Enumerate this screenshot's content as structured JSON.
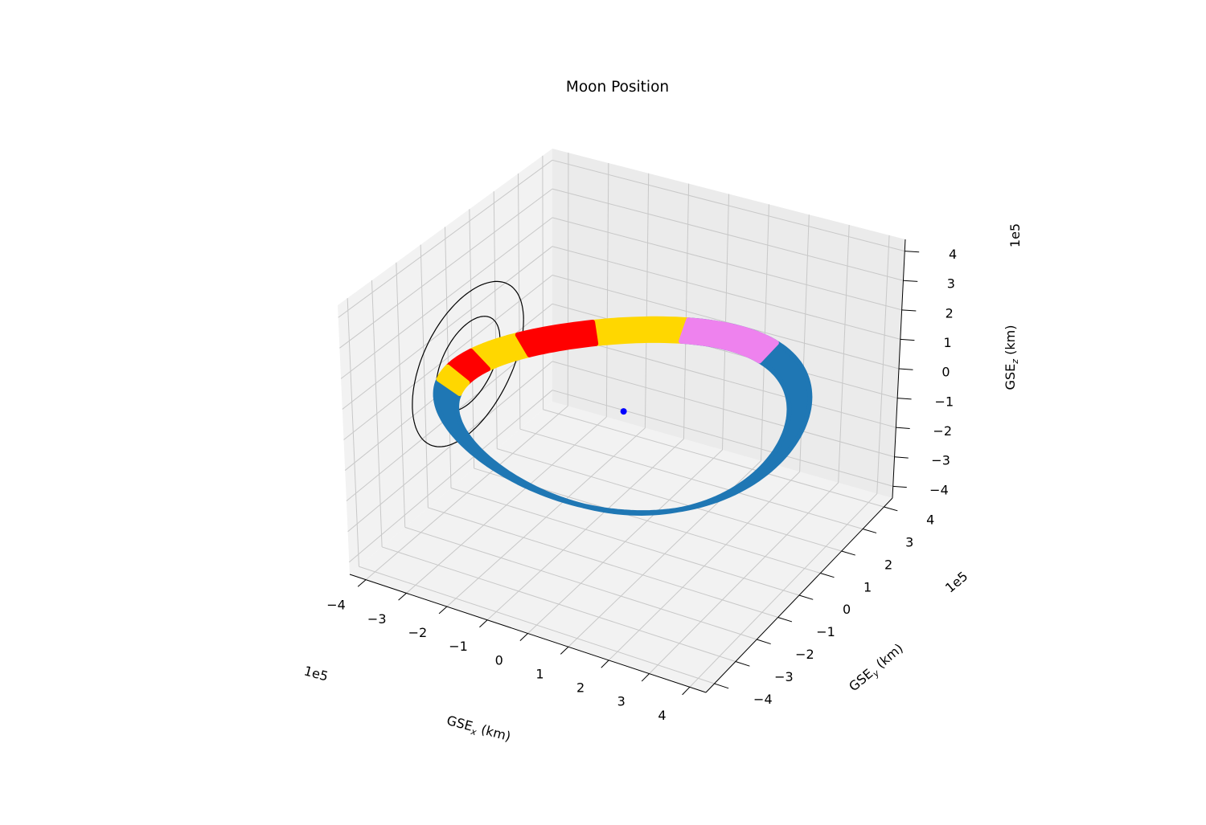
{
  "chart_data": {
    "type": "scatter",
    "projection": "3d",
    "title": "Moon Position",
    "xlabel": "GSE_x (km)",
    "ylabel": "GSE_y (km)",
    "zlabel": "GSE_z (km)",
    "xlabel_main": "GSE",
    "xlabel_sub": "x",
    "xlabel_unit": " (km)",
    "ylabel_main": "GSE",
    "ylabel_sub": "y",
    "ylabel_unit": " (km)",
    "zlabel_main": "GSE",
    "zlabel_sub": "z",
    "zlabel_unit": " (km)",
    "axis_multiplier": "1e5",
    "xlim": [
      -4.4,
      4.4
    ],
    "ylim": [
      -4.4,
      4.4
    ],
    "zlim": [
      -4.4,
      4.4
    ],
    "xticks": [
      -4,
      -3,
      -2,
      -1,
      0,
      1,
      2,
      3,
      4
    ],
    "yticks": [
      -4,
      -3,
      -2,
      -1,
      0,
      1,
      2,
      3,
      4
    ],
    "zticks": [
      -4,
      -3,
      -2,
      -1,
      0,
      1,
      2,
      3,
      4
    ],
    "xtick_labels": [
      "−4",
      "−3",
      "−2",
      "−1",
      "0",
      "1",
      "2",
      "3",
      "4"
    ],
    "ytick_labels": [
      "−4",
      "−3",
      "−2",
      "−1",
      "0",
      "1",
      "2",
      "3",
      "4"
    ],
    "ztick_labels": [
      "−4",
      "−3",
      "−2",
      "−1",
      "0",
      "1",
      "2",
      "3",
      "4"
    ],
    "grid": true,
    "orbit": {
      "radius_min": 3.6,
      "radius_max": 4.05,
      "z_amplitude": 0.3,
      "segments": [
        {
          "color": "#1f77b4",
          "angle_start_deg": 200,
          "angle_end_deg": 460
        },
        {
          "color": "#ffd700",
          "angle_start_deg": 100,
          "angle_end_deg": 130
        },
        {
          "color": "#ee82ee",
          "angle_start_deg": 65,
          "angle_end_deg": 100
        },
        {
          "color": "#ffd700",
          "angle_start_deg": 155,
          "angle_end_deg": 175
        },
        {
          "color": "#ff0000",
          "angle_start_deg": 130,
          "angle_end_deg": 155
        },
        {
          "color": "#ff0000",
          "angle_start_deg": 175,
          "angle_end_deg": 190
        },
        {
          "color": "#ffd700",
          "angle_start_deg": 190,
          "angle_end_deg": 200
        }
      ]
    },
    "earth_marker": {
      "x": 0,
      "y": 0,
      "z": 0,
      "color": "#0000ff"
    },
    "circles": [
      {
        "center": [
          -3.9,
          0,
          0
        ],
        "radius": 1.35,
        "plane": "yz",
        "color": "#000000"
      },
      {
        "center": [
          -3.9,
          0,
          0
        ],
        "radius": 2.35,
        "plane": "yz",
        "color": "#000000"
      }
    ]
  }
}
